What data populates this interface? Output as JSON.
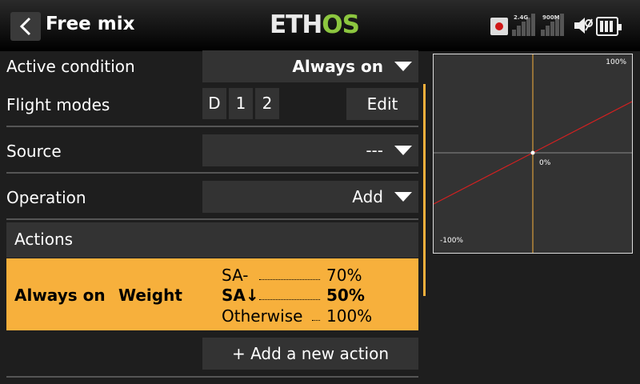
{
  "header": {
    "title": "Free mix",
    "logo_eth": "ETH",
    "logo_os": "OS",
    "signal_24g": "2.4G",
    "signal_900m": "900M"
  },
  "form": {
    "active_condition": {
      "label": "Active condition",
      "value": "Always on"
    },
    "flight_modes": {
      "label": "Flight modes",
      "chips": [
        "D",
        "1",
        "2"
      ],
      "edit_label": "Edit"
    },
    "source": {
      "label": "Source",
      "value": "---"
    },
    "operation": {
      "label": "Operation",
      "value": "Add"
    }
  },
  "actions": {
    "header": "Actions",
    "row": {
      "condition": "Always on",
      "type": "Weight",
      "entries": [
        {
          "switch": "SA-",
          "value": "70%",
          "bold": false
        },
        {
          "switch": "SA↓",
          "value": "50%",
          "bold": true
        },
        {
          "switch": "Otherwise",
          "value": "100%",
          "bold": false
        }
      ]
    },
    "add_label": "+ Add a new action"
  },
  "graph": {
    "label_top": "100%",
    "label_center": "0%",
    "label_bottom": "-100%",
    "curve_color": "#d42020",
    "axis_color": "#f7b03c"
  },
  "colors": {
    "accent": "#f7b03c",
    "background": "#1e1e1e",
    "field": "#333333"
  }
}
